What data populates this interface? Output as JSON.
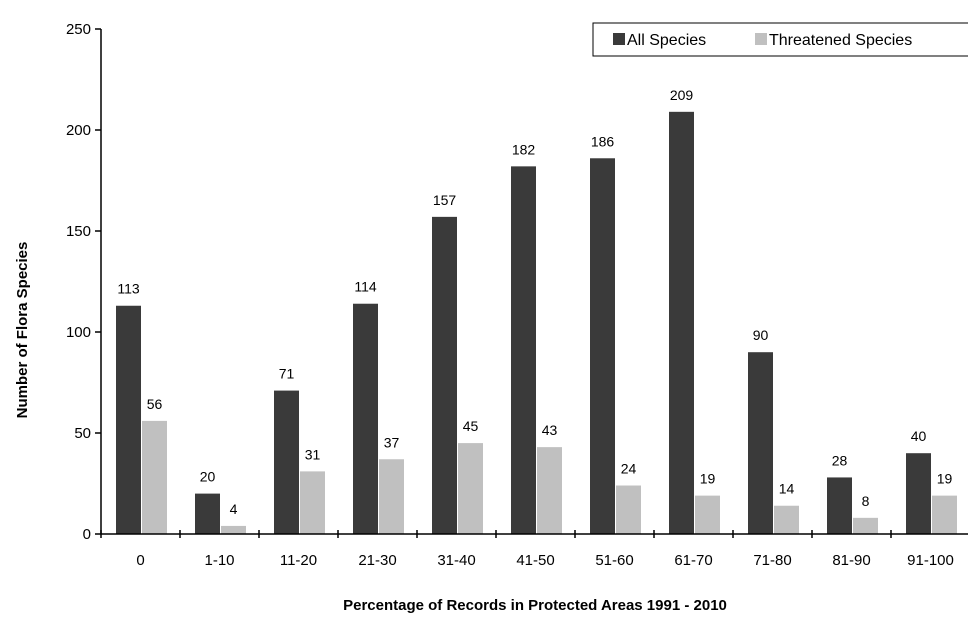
{
  "chart_data": {
    "type": "bar",
    "title": "",
    "xlabel": "Percentage of Records in Protected Areas 1991 - 2010",
    "ylabel": "Number of Flora Species",
    "ylim": [
      0,
      250
    ],
    "yticks": [
      0,
      50,
      100,
      150,
      200,
      250
    ],
    "grid": false,
    "legend_position": "top-right",
    "categories": [
      "0",
      "1-10",
      "11-20",
      "21-30",
      "31-40",
      "41-50",
      "51-60",
      "61-70",
      "71-80",
      "81-90",
      "91-100"
    ],
    "series": [
      {
        "name": "All Species",
        "color": "#3a3a3a",
        "values": [
          113,
          20,
          71,
          114,
          157,
          182,
          186,
          209,
          90,
          28,
          40
        ]
      },
      {
        "name": "Threatened Species",
        "color": "#c0c0c0",
        "values": [
          56,
          4,
          31,
          37,
          45,
          43,
          24,
          19,
          14,
          8,
          19
        ]
      }
    ]
  }
}
